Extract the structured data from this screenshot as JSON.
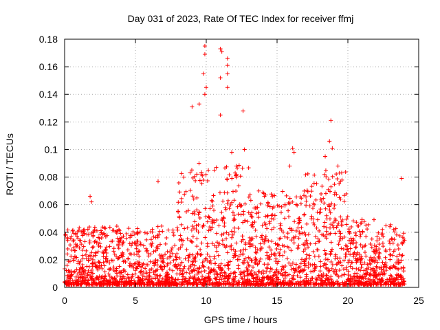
{
  "chart_data": {
    "type": "scatter",
    "title": "Day 031 of 2023, Rate Of TEC Index for receiver ffmj",
    "xlabel": "GPS time / hours",
    "ylabel": "ROTI / TECUs",
    "xlim": [
      0,
      25
    ],
    "ylim": [
      0,
      0.18
    ],
    "x_ticks": [
      "0",
      "5",
      "10",
      "15",
      "20",
      "25"
    ],
    "y_ticks": [
      "0",
      "0.02",
      "0.04",
      "0.06",
      "0.08",
      "0.1",
      "0.12",
      "0.14",
      "0.16",
      "0.18"
    ],
    "grid": true,
    "marker": "+",
    "color": "#ff0000",
    "series": [
      {
        "x_range_hours": [
          0,
          24
        ],
        "notable_points": [
          {
            "x": 9.9,
            "y": 0.175
          },
          {
            "x": 9.9,
            "y": 0.169
          },
          {
            "x": 11.0,
            "y": 0.173
          },
          {
            "x": 11.1,
            "y": 0.171
          },
          {
            "x": 11.5,
            "y": 0.166
          },
          {
            "x": 11.5,
            "y": 0.161
          },
          {
            "x": 11.5,
            "y": 0.155
          },
          {
            "x": 11.0,
            "y": 0.152
          },
          {
            "x": 11.5,
            "y": 0.145
          },
          {
            "x": 9.8,
            "y": 0.155
          },
          {
            "x": 10.0,
            "y": 0.145
          },
          {
            "x": 9.9,
            "y": 0.14
          },
          {
            "x": 9.5,
            "y": 0.133
          },
          {
            "x": 9.0,
            "y": 0.131
          },
          {
            "x": 12.6,
            "y": 0.128
          },
          {
            "x": 11.0,
            "y": 0.125
          },
          {
            "x": 18.8,
            "y": 0.121
          },
          {
            "x": 18.7,
            "y": 0.106
          },
          {
            "x": 18.9,
            "y": 0.101
          },
          {
            "x": 16.1,
            "y": 0.101
          },
          {
            "x": 16.2,
            "y": 0.098
          },
          {
            "x": 11.8,
            "y": 0.098
          },
          {
            "x": 12.7,
            "y": 0.1
          },
          {
            "x": 15.9,
            "y": 0.088
          },
          {
            "x": 18.4,
            "y": 0.095
          },
          {
            "x": 19.3,
            "y": 0.088
          },
          {
            "x": 23.8,
            "y": 0.079
          },
          {
            "x": 6.6,
            "y": 0.077
          },
          {
            "x": 1.8,
            "y": 0.066
          },
          {
            "x": 1.9,
            "y": 0.062
          }
        ],
        "bands": [
          {
            "x": [
              0,
              8
            ],
            "y": [
              0.002,
              0.045
            ]
          },
          {
            "x": [
              8,
              13
            ],
            "y": [
              0.002,
              0.09
            ]
          },
          {
            "x": [
              13,
              17
            ],
            "y": [
              0.002,
              0.07
            ]
          },
          {
            "x": [
              17,
              20
            ],
            "y": [
              0.002,
              0.085
            ]
          },
          {
            "x": [
              20,
              24
            ],
            "y": [
              0.002,
              0.05
            ]
          }
        ]
      }
    ]
  }
}
